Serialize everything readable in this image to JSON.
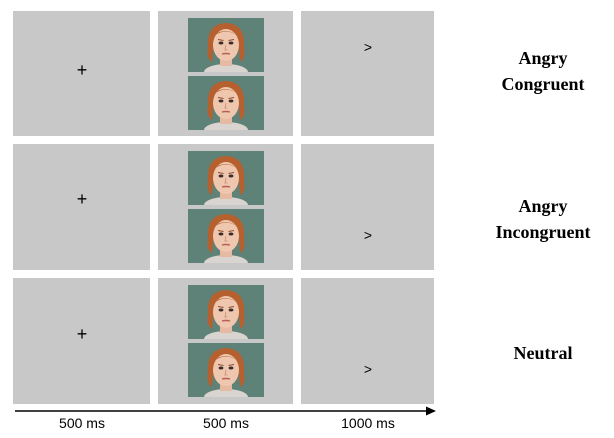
{
  "trials": [
    {
      "fixation": "+",
      "probe": ">",
      "probe_position": "top",
      "condition_lines": [
        "Angry",
        "Congruent"
      ]
    },
    {
      "fixation": "+",
      "probe": ">",
      "probe_position": "bottom",
      "condition_lines": [
        "Angry",
        "Incongruent"
      ]
    },
    {
      "fixation": "+",
      "probe": ">",
      "probe_position": "bottom",
      "condition_lines": [
        "Neutral"
      ]
    }
  ],
  "timeline": {
    "labels": [
      "500 ms",
      "500 ms",
      "1000 ms"
    ]
  },
  "colors": {
    "panel": "#c8c8c8",
    "face_background": "#5e8277",
    "hair": "#b5602e"
  }
}
